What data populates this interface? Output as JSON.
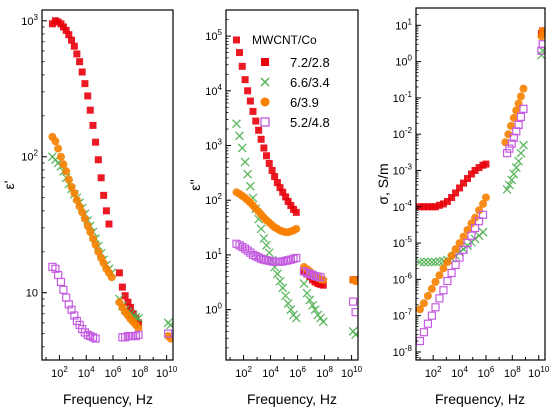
{
  "chart_data": [
    {
      "type": "scatter",
      "panel": "a",
      "xlabel": "Frequency, Hz",
      "ylabel": "ε'",
      "xscale": "log",
      "yscale": "log",
      "xlim": [
        5,
        30000000000
      ],
      "ylim": [
        3.2,
        1200
      ],
      "x_tick_labels": [
        "10^2",
        "10^4",
        "10^6",
        "10^8",
        "10^10"
      ],
      "y_tick_labels": [
        "10",
        "10^2",
        "10^3"
      ],
      "series": [
        {
          "name": "7.2/2.8",
          "color": "#e8000b",
          "marker": "square",
          "x": [
            30,
            50,
            80,
            130,
            200,
            320,
            500,
            800,
            1300,
            2000,
            3200,
            5000,
            8000,
            13000,
            20000,
            32000,
            50000,
            80000,
            130000,
            200000,
            320000,
            500000,
            3000000,
            5000000,
            8000000,
            13000000,
            20000000,
            32000000,
            50000000,
            80000000
          ],
          "y": [
            950,
            1000,
            980,
            950,
            900,
            850,
            790,
            720,
            650,
            570,
            500,
            420,
            345,
            280,
            220,
            170,
            128,
            95,
            70,
            52,
            40,
            32,
            14,
            11,
            9.5,
            8.5,
            7.8,
            7,
            6.5,
            6
          ]
        },
        {
          "name": "6.6/3.4",
          "color": "#4caf50",
          "marker": "x",
          "x": [
            30,
            50,
            80,
            130,
            200,
            320,
            500,
            800,
            1300,
            2000,
            3200,
            5000,
            8000,
            13000,
            20000,
            32000,
            50000,
            80000,
            130000,
            200000,
            320000,
            500000,
            800000,
            3000000,
            5000000,
            8000000,
            13000000,
            20000000,
            32000000,
            50000000,
            80000000,
            13000000000,
            20000000000
          ],
          "y": [
            100,
            95,
            90,
            85,
            78,
            70,
            63,
            58,
            53,
            50,
            46,
            42,
            38,
            34,
            31,
            28,
            25,
            22,
            19.5,
            17.5,
            16,
            15,
            14,
            9,
            8,
            7.5,
            7.2,
            7,
            6.8,
            6.6,
            6.5,
            6,
            5.8
          ]
        },
        {
          "name": "6/3.9",
          "color": "#f77f00",
          "marker": "circle",
          "x": [
            30,
            50,
            80,
            130,
            200,
            320,
            500,
            800,
            1300,
            2000,
            3200,
            5000,
            8000,
            13000,
            20000,
            32000,
            50000,
            80000,
            130000,
            200000,
            320000,
            500000,
            800000,
            3000000,
            5000000,
            8000000,
            13000000,
            20000000,
            32000000,
            50000000,
            80000000,
            13000000000,
            20000000000
          ],
          "y": [
            140,
            130,
            115,
            100,
            88,
            78,
            68,
            60,
            54,
            48,
            43,
            39,
            35,
            31,
            28,
            25,
            22.5,
            20,
            18,
            16.5,
            15,
            14,
            13,
            8.5,
            7.8,
            7.2,
            6.8,
            6.4,
            6.1,
            5.8,
            5.5,
            4.8,
            4.6
          ]
        },
        {
          "name": "5.2/4.8",
          "color": "#c45be0",
          "marker": "open-square",
          "x": [
            30,
            50,
            80,
            130,
            200,
            320,
            500,
            800,
            1300,
            2000,
            3200,
            5000,
            8000,
            13000,
            20000,
            32000,
            50000,
            5000000,
            8000000,
            13000000,
            20000000,
            32000000,
            50000000,
            80000000,
            13000000000
          ],
          "y": [
            15.5,
            15,
            13.5,
            12,
            10.5,
            9.2,
            8.2,
            7.5,
            6.8,
            6.2,
            5.8,
            5.4,
            5.1,
            4.9,
            4.8,
            4.7,
            4.6,
            4.7,
            4.7,
            4.8,
            4.8,
            4.8,
            4.8,
            4.9,
            5
          ]
        }
      ]
    },
    {
      "type": "scatter",
      "panel": "b",
      "xlabel": "Frequency, Hz",
      "ylabel": "ε''",
      "xscale": "log",
      "yscale": "log",
      "xlim": [
        5,
        30000000000
      ],
      "ylim": [
        0.12,
        300000
      ],
      "x_tick_labels": [
        "10^2",
        "10^4",
        "10^6",
        "10^8",
        "10^10"
      ],
      "y_tick_labels": [
        "10^0",
        "10^1",
        "10^2",
        "10^3",
        "10^4",
        "10^5"
      ],
      "legend_title": "MWCNT/Co",
      "legend_position": "top-right",
      "series": [
        {
          "name": "7.2/2.8",
          "color": "#e8000b",
          "marker": "square",
          "x": [
            30,
            50,
            80,
            130,
            200,
            320,
            500,
            800,
            1300,
            2000,
            3200,
            5000,
            8000,
            13000,
            20000,
            32000,
            50000,
            80000,
            130000,
            200000,
            320000,
            500000,
            800000,
            3000000,
            5000000,
            8000000,
            13000000,
            20000000,
            32000000,
            50000000,
            80000000,
            13000000000,
            20000000000
          ],
          "y": [
            85000,
            50000,
            28000,
            16000,
            10000,
            6500,
            4200,
            2800,
            1900,
            1300,
            900,
            650,
            470,
            350,
            270,
            210,
            170,
            140,
            115,
            95,
            80,
            68,
            60,
            5,
            4.5,
            4,
            3.5,
            3.2,
            3,
            2.9,
            2.8,
            3.5,
            3.5
          ]
        },
        {
          "name": "6.6/3.4",
          "color": "#4caf50",
          "marker": "x",
          "x": [
            30,
            50,
            80,
            130,
            200,
            320,
            500,
            800,
            1300,
            2000,
            3200,
            5000,
            8000,
            13000,
            20000,
            32000,
            50000,
            80000,
            130000,
            200000,
            320000,
            500000,
            800000,
            3000000,
            5000000,
            8000000,
            13000000,
            20000000,
            32000000,
            50000000,
            80000000,
            13000000000,
            20000000000
          ],
          "y": [
            2500,
            1500,
            900,
            500,
            300,
            180,
            110,
            70,
            45,
            30,
            20,
            15,
            11,
            8,
            6,
            4.5,
            3.3,
            2.5,
            1.8,
            1.3,
            1,
            0.8,
            0.7,
            3,
            2,
            1.5,
            1.2,
            1,
            0.8,
            0.7,
            0.6,
            0.4,
            0.35
          ]
        },
        {
          "name": "6/3.9",
          "color": "#f77f00",
          "marker": "circle",
          "x": [
            30,
            50,
            80,
            130,
            200,
            320,
            500,
            800,
            1300,
            2000,
            3200,
            5000,
            8000,
            13000,
            20000,
            32000,
            50000,
            80000,
            130000,
            200000,
            320000,
            500000,
            800000,
            3000000,
            5000000,
            8000000,
            13000000,
            20000000,
            32000000,
            50000000,
            80000000,
            13000000000,
            20000000000
          ],
          "y": [
            140,
            130,
            120,
            110,
            100,
            90,
            80,
            70,
            62,
            55,
            48,
            43,
            39,
            35,
            32,
            30,
            28,
            27,
            26,
            26,
            27,
            28,
            30,
            6,
            5.5,
            5,
            4.5,
            4,
            3.8,
            3.6,
            3.5,
            3.5,
            3.3
          ]
        },
        {
          "name": "5.2/4.8",
          "color": "#c45be0",
          "marker": "open-square",
          "x": [
            30,
            50,
            80,
            130,
            200,
            320,
            500,
            800,
            1300,
            2000,
            3200,
            5000,
            8000,
            13000,
            20000,
            32000,
            50000,
            80000,
            130000,
            200000,
            320000,
            500000,
            800000,
            3000000,
            5000000,
            8000000,
            13000000,
            20000000,
            32000000,
            50000000,
            13000000000,
            20000000000
          ],
          "y": [
            16,
            15,
            14,
            13,
            12,
            11,
            10,
            9.5,
            9,
            8.5,
            8.2,
            8,
            7.8,
            7.6,
            7.5,
            7.5,
            7.5,
            7.6,
            7.8,
            8,
            8.2,
            8.5,
            8.8,
            5,
            4.7,
            4.5,
            4.3,
            4.1,
            4,
            3.9,
            1.4,
            0.9
          ]
        }
      ]
    },
    {
      "type": "scatter",
      "panel": "c",
      "xlabel": "Frequency, Hz",
      "ylabel": "σ, S/m",
      "xscale": "log",
      "yscale": "log",
      "xlim": [
        5,
        30000000000
      ],
      "ylim": [
        6e-09,
        30
      ],
      "x_tick_labels": [
        "10^2",
        "10^4",
        "10^6",
        "10^8",
        "10^10"
      ],
      "y_tick_labels": [
        "10^-8",
        "10^-7",
        "10^-6",
        "10^-5",
        "10^-4",
        "10^-3",
        "10^-2",
        "10^-1",
        "10^0",
        "10^1"
      ],
      "series": [
        {
          "name": "7.2/2.8",
          "color": "#e8000b",
          "marker": "square",
          "x": [
            10,
            20,
            40,
            80,
            150,
            300,
            600,
            1200,
            2500,
            5000,
            10000,
            20000,
            40000,
            80000,
            150000,
            300000,
            600000,
            1000000,
            16000000000,
            20000000000
          ],
          "y": [
            0.0001,
            0.0001,
            0.0001,
            0.0001,
            0.0001,
            0.00011,
            0.00012,
            0.00014,
            0.00018,
            0.00024,
            0.00033,
            0.00045,
            0.0006,
            0.0008,
            0.001,
            0.0012,
            0.0014,
            0.0015,
            6,
            7
          ]
        },
        {
          "name": "6.6/3.4",
          "color": "#4caf50",
          "marker": "x",
          "x": [
            10,
            20,
            40,
            80,
            150,
            300,
            600,
            1200,
            2500,
            5000,
            10000,
            20000,
            40000,
            80000,
            150000,
            300000,
            600000,
            40000000,
            60000000,
            90000000,
            130000000,
            200000000,
            300000000,
            450000000,
            700000000,
            16000000000,
            20000000000
          ],
          "y": [
            3e-06,
            3e-06,
            3e-06,
            3e-06,
            3e-06,
            3.1e-06,
            3.2e-06,
            3.4e-06,
            3.8e-06,
            4.5e-06,
            5.5e-06,
            6.8e-06,
            8.5e-06,
            1.05e-05,
            1.3e-05,
            1.6e-05,
            2e-05,
            0.0003,
            0.0004,
            0.00055,
            0.0008,
            0.0012,
            0.0018,
            0.003,
            0.005,
            1.5,
            2
          ]
        },
        {
          "name": "6/3.9",
          "color": "#f77f00",
          "marker": "circle",
          "x": [
            10,
            20,
            40,
            80,
            150,
            300,
            600,
            1200,
            2500,
            5000,
            10000,
            20000,
            40000,
            80000,
            150000,
            300000,
            600000,
            1000000,
            30000000,
            50000000,
            80000000,
            130000000,
            200000000,
            300000000,
            450000000,
            700000000,
            16000000000,
            20000000000
          ],
          "y": [
            1.5e-07,
            2.2e-07,
            3.5e-07,
            5.5e-07,
            8.5e-07,
            1.3e-06,
            2e-06,
            3e-06,
            4.5e-06,
            6.8e-06,
            1e-05,
            1.5e-05,
            2.3e-05,
            3.5e-05,
            5e-05,
            8e-05,
            0.00012,
            0.00018,
            0.006,
            0.01,
            0.017,
            0.028,
            0.045,
            0.07,
            0.11,
            0.18,
            5,
            7
          ]
        },
        {
          "name": "5.2/4.8",
          "color": "#c45be0",
          "marker": "open-square",
          "x": [
            10,
            20,
            40,
            80,
            150,
            300,
            600,
            1200,
            2500,
            5000,
            10000,
            20000,
            40000,
            80000,
            150000,
            300000,
            600000,
            40000000,
            60000000,
            90000000,
            130000000,
            200000000,
            300000000,
            450000000,
            700000000,
            16000000000,
            20000000000
          ],
          "y": [
            2e-08,
            3.5e-08,
            6e-08,
            1e-07,
            1.7e-07,
            3e-07,
            5e-07,
            9e-07,
            1.5e-06,
            2.5e-06,
            4e-06,
            6.5e-06,
            1e-05,
            1.6e-05,
            2.6e-05,
            4e-05,
            6e-05,
            0.003,
            0.004,
            0.0055,
            0.008,
            0.012,
            0.018,
            0.03,
            0.05,
            2,
            3
          ]
        }
      ]
    }
  ]
}
